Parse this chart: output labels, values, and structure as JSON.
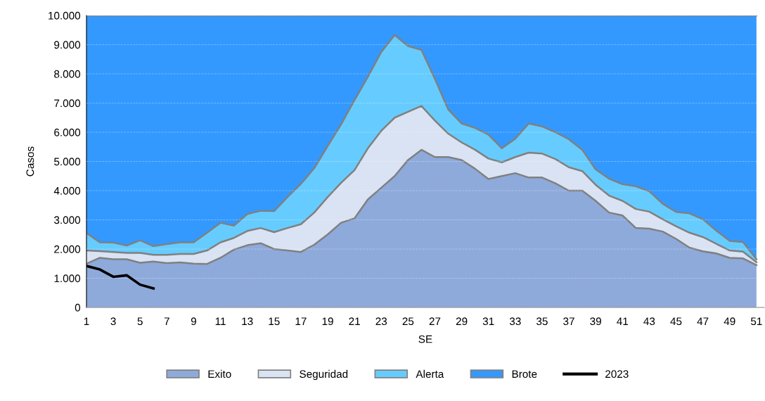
{
  "chart_data": {
    "type": "area",
    "stacked": true,
    "xlabel": "SE",
    "ylabel": "Casos",
    "categories": [
      "1",
      null,
      "3",
      null,
      "5",
      null,
      "7",
      null,
      "9",
      null,
      "11",
      null,
      "13",
      null,
      "15",
      null,
      "17",
      null,
      "19",
      null,
      "21",
      null,
      "23",
      null,
      "25",
      null,
      "27",
      null,
      "29",
      null,
      "31",
      null,
      "33",
      null,
      "35",
      null,
      "37",
      null,
      "39",
      null,
      "41",
      null,
      "43",
      null,
      "45",
      null,
      "47",
      null,
      "49",
      null,
      "51"
    ],
    "series": [
      {
        "name": "Exito",
        "color": "#8eaadb",
        "values": [
          1500,
          1700,
          1650,
          1650,
          1530,
          1570,
          1520,
          1540,
          1500,
          1490,
          1700,
          1980,
          2130,
          2200,
          2000,
          1950,
          1900,
          2150,
          2500,
          2900,
          3050,
          3700,
          4100,
          4500,
          5050,
          5400,
          5150,
          5150,
          5050,
          4750,
          4400,
          4500,
          4600,
          4450,
          4450,
          4250,
          4000,
          4000,
          3650,
          3250,
          3150,
          2720,
          2700,
          2600,
          2350,
          2050,
          1920,
          1850,
          1700,
          1680,
          1450
        ]
      },
      {
        "name": "Seguridad",
        "color": "#dae3f3",
        "values": [
          450,
          230,
          250,
          220,
          340,
          230,
          280,
          290,
          330,
          460,
          530,
          400,
          490,
          520,
          580,
          770,
          950,
          1100,
          1280,
          1370,
          1650,
          1750,
          1950,
          2000,
          1650,
          1500,
          1250,
          800,
          600,
          650,
          700,
          470,
          550,
          850,
          820,
          830,
          800,
          670,
          550,
          580,
          500,
          650,
          580,
          420,
          430,
          510,
          490,
          330,
          250,
          230,
          100
        ]
      },
      {
        "name": "Alerta",
        "color": "#66ccff",
        "values": [
          600,
          300,
          320,
          250,
          430,
          300,
          370,
          400,
          400,
          610,
          670,
          420,
          580,
          590,
          720,
          1060,
          1380,
          1520,
          1750,
          2000,
          2400,
          2450,
          2700,
          2830,
          2250,
          1920,
          1430,
          830,
          650,
          750,
          820,
          480,
          630,
          1000,
          930,
          920,
          960,
          730,
          530,
          580,
          570,
          780,
          700,
          530,
          490,
          660,
          610,
          450,
          330,
          330,
          100
        ]
      },
      {
        "name": "Brote",
        "color": "#3399ff",
        "values": [
          7450,
          7770,
          7780,
          7880,
          7700,
          7900,
          7830,
          7770,
          7770,
          7440,
          7100,
          7200,
          6800,
          6690,
          6700,
          6220,
          5770,
          5230,
          4470,
          3730,
          2900,
          2100,
          1250,
          670,
          1050,
          1180,
          2170,
          3220,
          3700,
          3850,
          4080,
          4550,
          4220,
          3700,
          3800,
          4000,
          4240,
          4600,
          5270,
          5590,
          5780,
          5850,
          6020,
          6450,
          6730,
          6780,
          6980,
          7370,
          7720,
          7760,
          8350
        ]
      },
      {
        "name": "2023",
        "color": "#000000",
        "type": "line",
        "values": [
          1420,
          1300,
          1050,
          1100,
          780,
          650,
          null,
          null,
          null,
          null,
          null,
          null,
          null,
          null,
          null,
          null,
          null,
          null,
          null,
          null,
          null,
          null,
          null,
          null,
          null,
          null,
          null,
          null,
          null,
          null,
          null,
          null,
          null,
          null,
          null,
          null,
          null,
          null,
          null,
          null,
          null,
          null,
          null,
          null,
          null,
          null,
          null,
          null,
          null,
          null,
          null
        ]
      }
    ],
    "ylim": [
      0,
      10000
    ],
    "yticks": [
      0,
      {
        "value": 1000,
        "label": "1.000"
      },
      {
        "value": 2000,
        "label": "2.000"
      },
      {
        "value": 3000,
        "label": "3.000"
      },
      {
        "value": 4000,
        "label": "4.000"
      },
      {
        "value": 5000,
        "label": "5.000"
      },
      {
        "value": 6000,
        "label": "6.000"
      },
      {
        "value": 7000,
        "label": "7.000"
      },
      {
        "value": 8000,
        "label": "8.000"
      },
      {
        "value": 9000,
        "label": "9.000"
      },
      {
        "value": 10000,
        "label": "10.000"
      }
    ],
    "grid": "y",
    "legend": "bottom",
    "marker": "none",
    "line_style": "solid"
  }
}
